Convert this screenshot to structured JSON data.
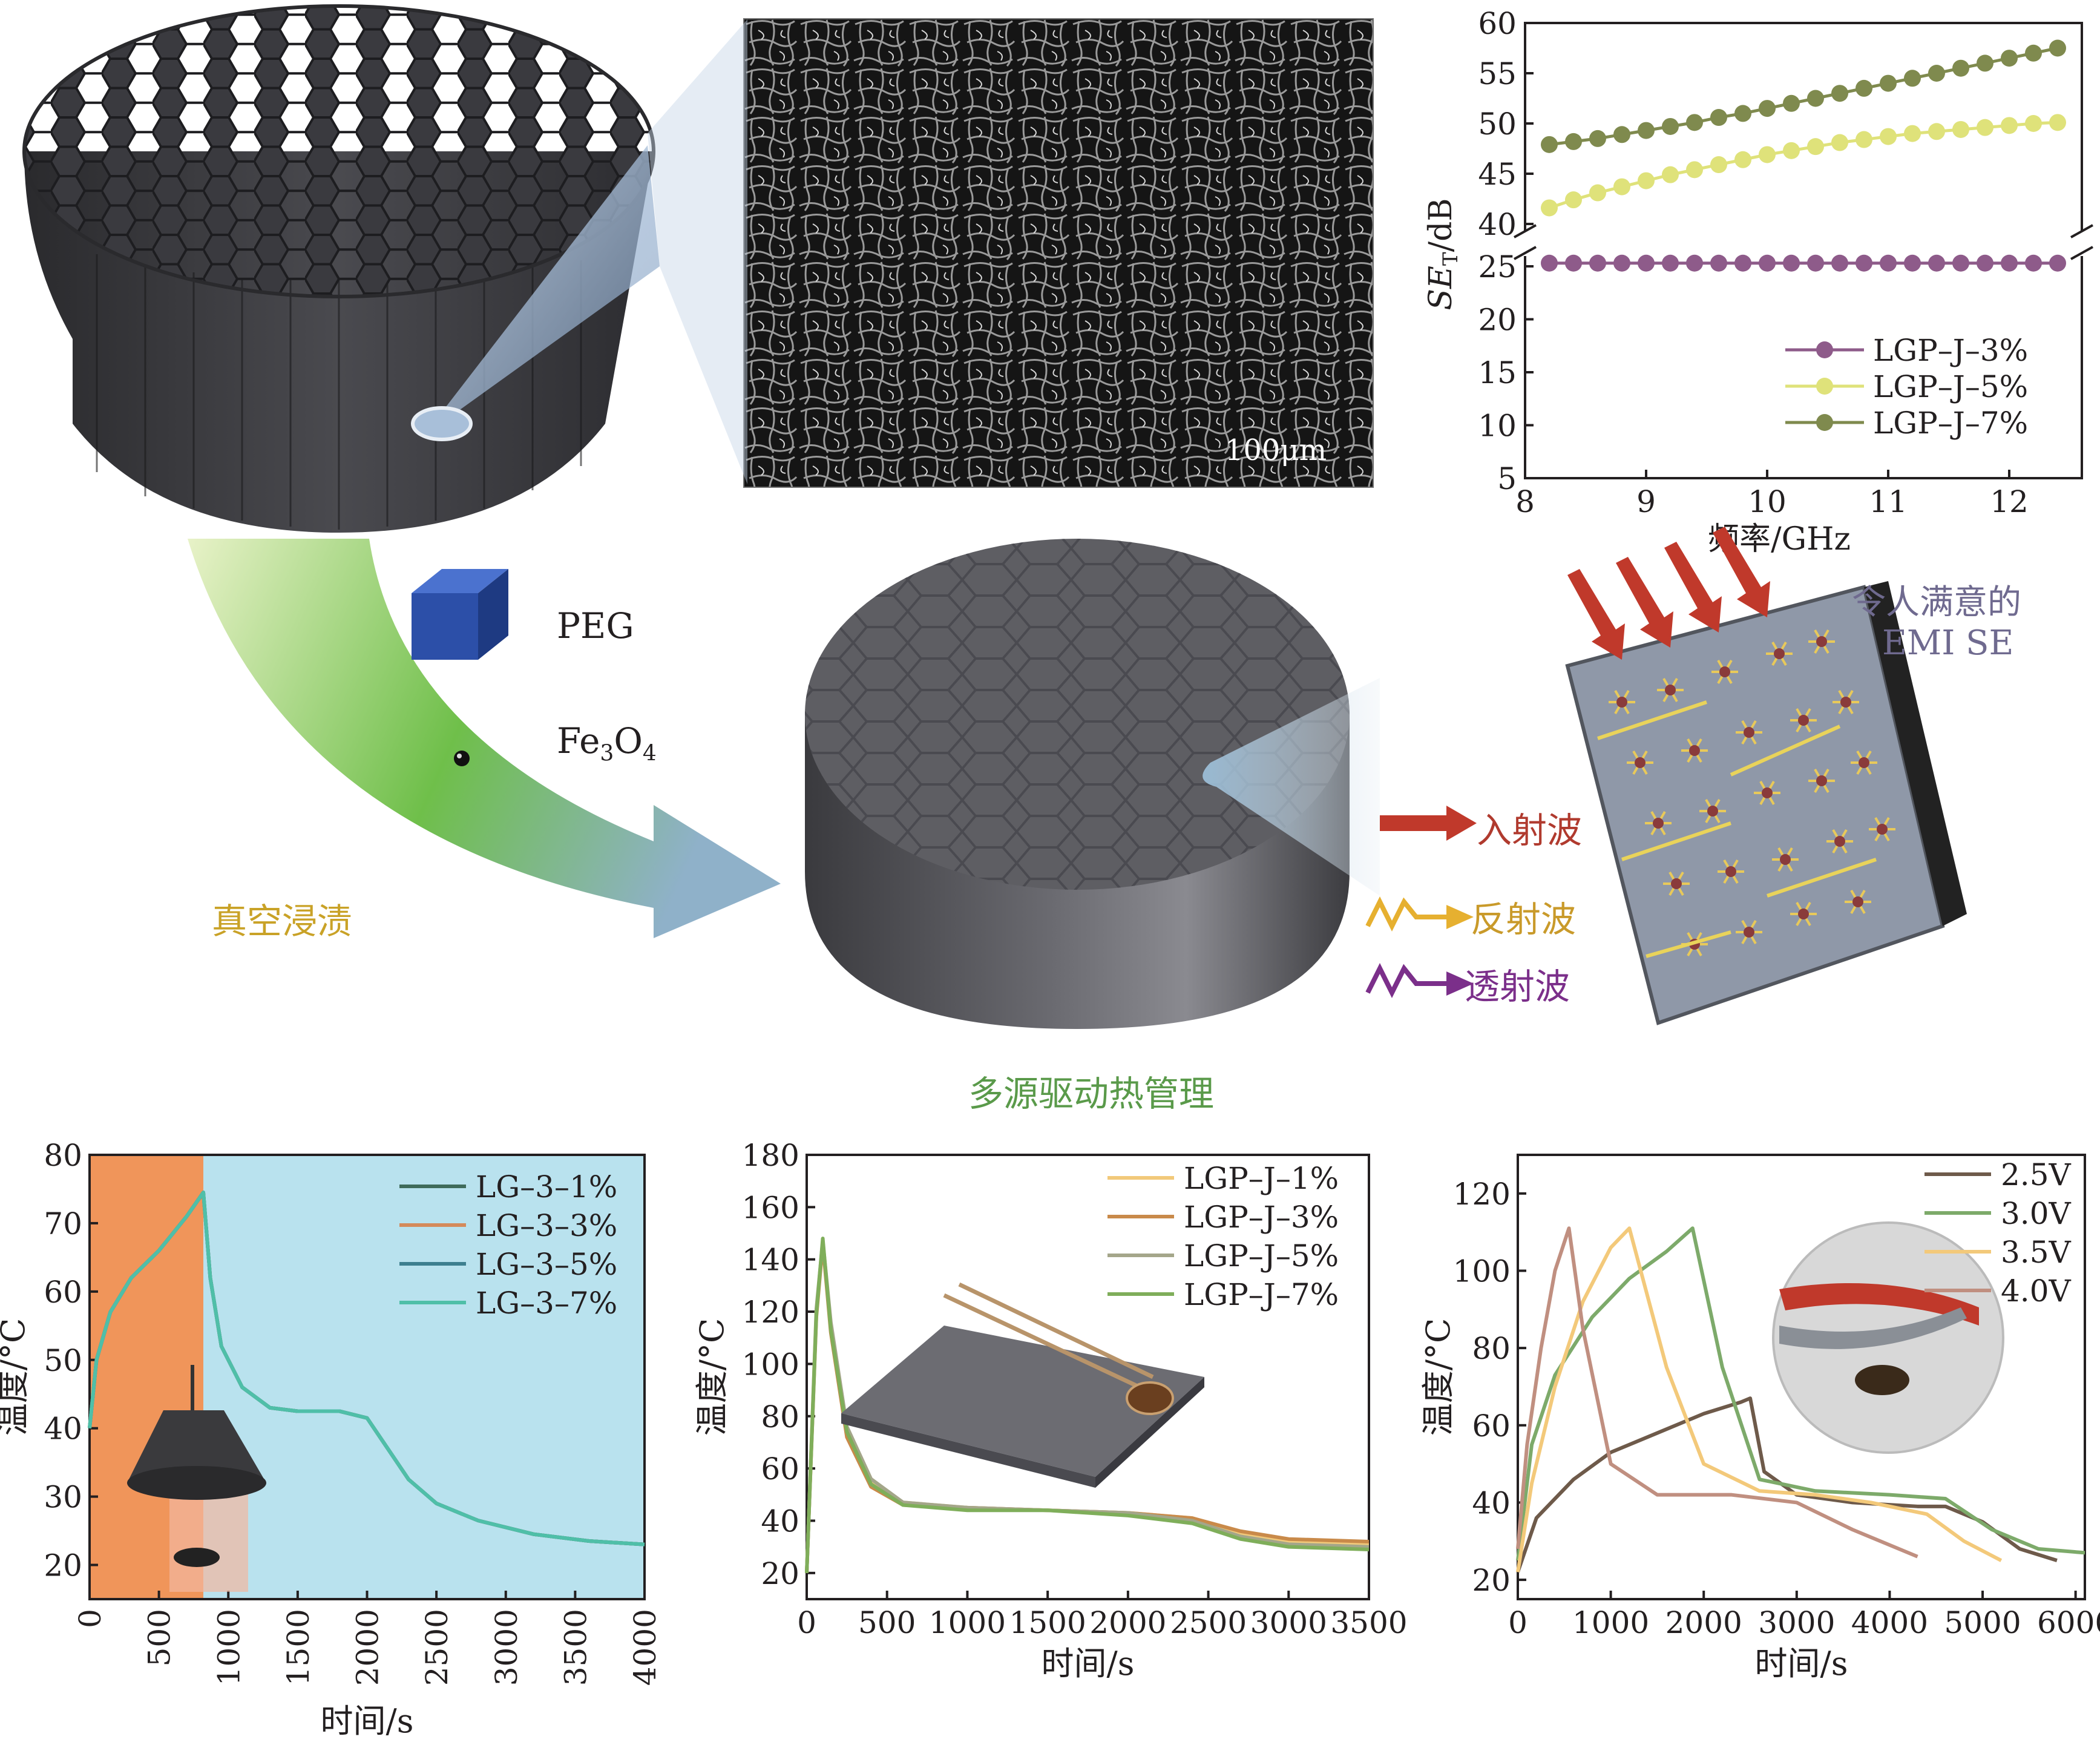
{
  "sem": {
    "scale_label": "100μm"
  },
  "process": {
    "peg_label": "PEG",
    "fe3o4_main": "Fe",
    "fe3o4_sub1": "3",
    "fe3o4_mid": "O",
    "fe3o4_sub2": "4",
    "impregnation_label": "真空浸渍"
  },
  "emi": {
    "incident_label": "入射波",
    "reflected_label": "反射波",
    "transmitted_label": "透射波",
    "result_line1": "令人满意的",
    "result_line2": "EMI SE"
  },
  "thermal_title": "多源驱动热管理",
  "colors": {
    "purple": "#8e5b8a",
    "yellow": "#dfe27a",
    "olive": "#7f8a4e",
    "gradient_green": "#6fbf4a",
    "incident_red": "#c0392b",
    "reflected_yellow": "#e6b030",
    "transmitted_purple": "#7b2f8a",
    "impregnation_text": "#c9a227",
    "thermal_text": "#5a9a4a",
    "result_text": "#6f6a8f"
  },
  "chart_data": [
    {
      "type": "scatter",
      "id": "emi-se",
      "xlabel": "频率/GHz",
      "ylabel_main": "SE",
      "ylabel_sub": "T",
      "ylabel_unit": "/dB",
      "xlim": [
        8,
        12.6
      ],
      "ylim": [
        5,
        60
      ],
      "axis_break": true,
      "xticks": [
        "8",
        "9",
        "10",
        "11",
        "12"
      ],
      "yticks": [
        "5",
        "10",
        "15",
        "20",
        "25",
        "40",
        "45",
        "50",
        "55",
        "60"
      ],
      "legend_position": "bottom-right",
      "series": [
        {
          "name": "LGP–J–3%",
          "color": "#8e5b8a",
          "x": [
            8.2,
            8.4,
            8.6,
            8.8,
            9.0,
            9.2,
            9.4,
            9.6,
            9.8,
            10.0,
            10.2,
            10.4,
            10.6,
            10.8,
            11.0,
            11.2,
            11.4,
            11.6,
            11.8,
            12.0,
            12.2,
            12.4
          ],
          "y": [
            25.3,
            25.3,
            25.3,
            25.3,
            25.3,
            25.3,
            25.3,
            25.3,
            25.3,
            25.3,
            25.3,
            25.3,
            25.3,
            25.3,
            25.3,
            25.3,
            25.3,
            25.3,
            25.3,
            25.3,
            25.3,
            25.3
          ]
        },
        {
          "name": "LGP–J–5%",
          "color": "#dfe27a",
          "x": [
            8.2,
            8.4,
            8.6,
            8.8,
            9.0,
            9.2,
            9.4,
            9.6,
            9.8,
            10.0,
            10.2,
            10.4,
            10.6,
            10.8,
            11.0,
            11.2,
            11.4,
            11.6,
            11.8,
            12.0,
            12.2,
            12.4
          ],
          "y": [
            41.6,
            42.4,
            43.1,
            43.7,
            44.3,
            44.9,
            45.4,
            45.9,
            46.4,
            46.9,
            47.3,
            47.7,
            48.1,
            48.4,
            48.7,
            49.0,
            49.2,
            49.4,
            49.6,
            49.8,
            50.0,
            50.1
          ]
        },
        {
          "name": "LGP–J–7%",
          "color": "#7f8a4e",
          "x": [
            8.2,
            8.4,
            8.6,
            8.8,
            9.0,
            9.2,
            9.4,
            9.6,
            9.8,
            10.0,
            10.2,
            10.4,
            10.6,
            10.8,
            11.0,
            11.2,
            11.4,
            11.6,
            11.8,
            12.0,
            12.2,
            12.4
          ],
          "y": [
            47.9,
            48.2,
            48.5,
            48.9,
            49.3,
            49.7,
            50.1,
            50.6,
            51.0,
            51.5,
            52.0,
            52.5,
            53.0,
            53.5,
            54.0,
            54.5,
            55.0,
            55.5,
            56.0,
            56.5,
            57.0,
            57.5
          ]
        }
      ]
    },
    {
      "type": "line",
      "id": "light-driven",
      "xlabel": "时间/s",
      "ylabel": "温度/°C",
      "xlim": [
        0,
        4000
      ],
      "ylim": [
        15,
        80
      ],
      "xticks": [
        "0",
        "500",
        "1000",
        "1500",
        "2000",
        "2500",
        "3000",
        "3500",
        "4000"
      ],
      "yticks": [
        "20",
        "30",
        "40",
        "50",
        "60",
        "70",
        "80"
      ],
      "heating_end_s": 820,
      "legend_position": "top-right",
      "series": [
        {
          "name": "LG–3–1%",
          "color": "#3f6b5a",
          "x": [
            0,
            50,
            150,
            300,
            500,
            700,
            820,
            870,
            950,
            1100,
            1300,
            1500,
            1800,
            2000,
            2150,
            2300,
            2500,
            2800,
            3200,
            3600,
            4000
          ],
          "y": [
            40,
            50,
            57,
            62,
            66,
            71,
            74.5,
            62,
            52,
            46,
            43,
            42.5,
            42.5,
            41.5,
            37,
            32.5,
            29,
            26.5,
            24.5,
            23.5,
            23
          ]
        },
        {
          "name": "LG–3–3%",
          "color": "#d48a5a",
          "x": [
            0,
            50,
            150,
            300,
            500,
            700,
            820,
            870,
            950,
            1100,
            1300,
            1500,
            1800,
            2000,
            2150,
            2300,
            2500,
            2800,
            3200,
            3600,
            4000
          ],
          "y": [
            40,
            50,
            57,
            62,
            66,
            71,
            74.5,
            62,
            52,
            46,
            43,
            42.5,
            42.5,
            41.5,
            37,
            32.5,
            29,
            26.5,
            24.5,
            23.5,
            23
          ]
        },
        {
          "name": "LG–3–5%",
          "color": "#3d7f8f",
          "x": [
            0,
            50,
            150,
            300,
            500,
            700,
            820,
            870,
            950,
            1100,
            1300,
            1500,
            1800,
            2000,
            2150,
            2300,
            2500,
            2800,
            3200,
            3600,
            4000
          ],
          "y": [
            40,
            50,
            57,
            62,
            66,
            71,
            74.5,
            62,
            52,
            46,
            43,
            42.5,
            42.5,
            41.5,
            37,
            32.5,
            29,
            26.5,
            24.5,
            23.5,
            23
          ]
        },
        {
          "name": "LG–3–7%",
          "color": "#4fbfa8",
          "x": [
            0,
            50,
            150,
            300,
            500,
            700,
            820,
            870,
            950,
            1100,
            1300,
            1500,
            1800,
            2000,
            2150,
            2300,
            2500,
            2800,
            3200,
            3600,
            4000
          ],
          "y": [
            40,
            50,
            57,
            62,
            66,
            71,
            74.5,
            62,
            52,
            46,
            43,
            42.5,
            42.5,
            41.5,
            37,
            32.5,
            29,
            26.5,
            24.5,
            23.5,
            23
          ]
        }
      ]
    },
    {
      "type": "line",
      "id": "heat-driven",
      "xlabel": "时间/s",
      "ylabel": "温度/°C",
      "xlim": [
        0,
        3500
      ],
      "ylim": [
        10,
        180
      ],
      "xticks": [
        "0",
        "500",
        "1000",
        "1500",
        "2000",
        "2500",
        "3000",
        "3500"
      ],
      "yticks": [
        "20",
        "40",
        "60",
        "80",
        "100",
        "120",
        "140",
        "160",
        "180"
      ],
      "legend_position": "top-right",
      "series": [
        {
          "name": "LGP–J–1%",
          "color": "#f2c97a",
          "x": [
            0,
            60,
            100,
            150,
            250,
            400,
            600,
            1000,
            1500,
            2000,
            2400,
            2700,
            3000,
            3500
          ],
          "y": [
            20,
            120,
            146,
            115,
            75,
            55,
            47,
            45,
            44,
            43,
            41,
            35,
            32,
            31
          ]
        },
        {
          "name": "LGP–J–3%",
          "color": "#c98a4a",
          "x": [
            0,
            60,
            100,
            150,
            250,
            400,
            600,
            1000,
            1500,
            2000,
            2400,
            2700,
            3000,
            3500
          ],
          "y": [
            20,
            118,
            146,
            112,
            72,
            53,
            46,
            45,
            44,
            43,
            41,
            36,
            33,
            32
          ]
        },
        {
          "name": "LGP–J–5%",
          "color": "#a4a68a",
          "x": [
            0,
            60,
            100,
            150,
            250,
            400,
            600,
            1000,
            1500,
            2000,
            2400,
            2700,
            3000,
            3500
          ],
          "y": [
            20,
            121,
            147,
            116,
            76,
            56,
            47,
            45,
            44,
            43,
            40,
            34,
            31,
            30
          ]
        },
        {
          "name": "LGP–J–7%",
          "color": "#7fae5a",
          "x": [
            0,
            60,
            100,
            150,
            250,
            400,
            600,
            1000,
            1500,
            2000,
            2400,
            2700,
            3000,
            3500
          ],
          "y": [
            20,
            119,
            148,
            113,
            74,
            54,
            46,
            44,
            44,
            42,
            39,
            33,
            30,
            29
          ]
        }
      ]
    },
    {
      "type": "line",
      "id": "electric-driven",
      "xlabel": "时间/s",
      "ylabel": "温度/°C",
      "xlim": [
        0,
        6100
      ],
      "ylim": [
        15,
        130
      ],
      "xticks": [
        "0",
        "1000",
        "2000",
        "3000",
        "4000",
        "5000",
        "6000"
      ],
      "yticks": [
        "20",
        "40",
        "60",
        "80",
        "100",
        "120"
      ],
      "legend_position": "top-right",
      "series": [
        {
          "name": "2.5V",
          "color": "#6e5a4a",
          "x": [
            0,
            200,
            600,
            1000,
            1500,
            2000,
            2400,
            2500,
            2650,
            3000,
            3600,
            4300,
            4600,
            5000,
            5400,
            5800
          ],
          "y": [
            22,
            36,
            46,
            53,
            58,
            63,
            66,
            67,
            48,
            42,
            40,
            39,
            39,
            35,
            28,
            25
          ]
        },
        {
          "name": "3.0V",
          "color": "#7daa6a",
          "x": [
            0,
            150,
            400,
            800,
            1200,
            1600,
            1880,
            2200,
            2600,
            3200,
            4000,
            4600,
            5100,
            5600,
            6100
          ],
          "y": [
            25,
            55,
            73,
            88,
            98,
            105,
            111,
            75,
            46,
            43,
            42,
            41,
            33,
            28,
            27
          ]
        },
        {
          "name": "3.5V",
          "color": "#f3c97a",
          "x": [
            0,
            150,
            400,
            700,
            1000,
            1200,
            1600,
            2000,
            2600,
            3200,
            3800,
            4400,
            4800,
            5200
          ],
          "y": [
            22,
            45,
            70,
            92,
            106,
            111,
            75,
            50,
            43,
            42,
            40,
            37,
            30,
            25
          ]
        },
        {
          "name": "4.0V",
          "color": "#c08f80",
          "x": [
            0,
            100,
            250,
            400,
            550,
            700,
            1000,
            1500,
            2300,
            3000,
            3600,
            4300
          ],
          "y": [
            28,
            55,
            80,
            100,
            111,
            85,
            50,
            42,
            42,
            40,
            33,
            26
          ]
        }
      ]
    }
  ]
}
